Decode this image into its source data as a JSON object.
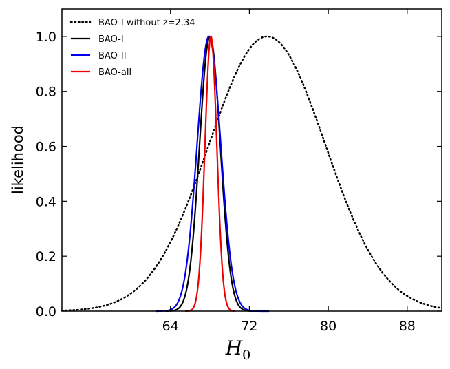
{
  "chart_data": {
    "type": "line",
    "title": "",
    "xlabel": "H",
    "xlabel_subscript": "0",
    "ylabel": "likelihood",
    "xlim": [
      53,
      91.5
    ],
    "ylim": [
      0,
      1.1
    ],
    "xticks": [
      64,
      72,
      80,
      88
    ],
    "xtick_labels": [
      "64",
      "72",
      "80",
      "88"
    ],
    "yticks": [
      0.0,
      0.2,
      0.4,
      0.6,
      0.8,
      1.0
    ],
    "ytick_labels": [
      "0.0",
      "0.2",
      "0.4",
      "0.6",
      "0.8",
      "1.0"
    ],
    "legend_position": "top-left",
    "series": [
      {
        "name": "BAO-I without z=2.34",
        "color": "#000000",
        "style": "dotted",
        "mean": 73.8,
        "sigma": 5.9,
        "x_range": [
          53,
          91.5
        ]
      },
      {
        "name": "BAO-I",
        "color": "#000000",
        "style": "solid",
        "mean": 68.0,
        "sigma": 1.05,
        "x_range": [
          63.5,
          72.5
        ]
      },
      {
        "name": "BAO-II",
        "color": "#0000ee",
        "style": "solid",
        "mean": 67.9,
        "sigma": 1.2,
        "x_range": [
          62.5,
          74.0
        ]
      },
      {
        "name": "BAO-all",
        "color": "#ee0000",
        "style": "solid",
        "mean": 68.1,
        "sigma": 0.6,
        "x_range": [
          65.5,
          70.5
        ]
      }
    ]
  }
}
